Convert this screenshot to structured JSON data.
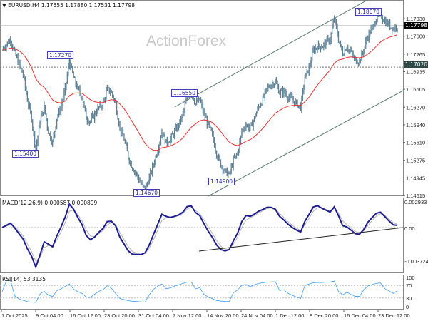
{
  "header": {
    "symbol": "EURUSD,H4",
    "ohlc": "1.17555 1.17880 1.17531 1.17798"
  },
  "watermark": "ActionForex",
  "colors": {
    "candle": "#5b7f95",
    "ma": "#f03030",
    "macd": "#1c1c90",
    "signal": "#b0b0b0",
    "rsi": "#3d9bf0",
    "current_tag": "#000000",
    "level_tag": "#2e4a48",
    "channel": "#5a7a70"
  },
  "chart_data": {
    "type": "ohlc-bar",
    "price_axis": {
      "ticks": [
        "1.17930",
        "1.17600",
        "1.17265",
        "1.16935",
        "1.16605",
        "1.16270",
        "1.15940",
        "1.15610",
        "1.15275",
        "1.14945",
        "1.14615"
      ],
      "range": [
        1.14615,
        1.1793
      ]
    },
    "current_price": "1.17798",
    "level_line": "1.17020",
    "annotations": [
      "1.17270",
      "1.15400",
      "1.14670",
      "1.16550",
      "1.14900",
      "1.18070"
    ],
    "x_ticks": [
      "1 Oct 2025",
      "9 Oct 04:00",
      "16 Oct 12:00",
      "23 Oct 20:00",
      "31 Oct 04:00",
      "7 Nov 12:00",
      "14 Nov 20:00",
      "24 Nov 04:00",
      "1 Dec 12:00",
      "8 Dec 20:00",
      "16 Dec 04:00",
      "23 Dec 12:00"
    ],
    "close": [
      1.1734,
      1.1745,
      1.1754,
      1.1728,
      1.1708,
      1.1687,
      1.1641,
      1.1607,
      1.1547,
      1.1601,
      1.1627,
      1.1581,
      1.1561,
      1.1607,
      1.1627,
      1.1661,
      1.1714,
      1.1681,
      1.1661,
      1.1647,
      1.1607,
      1.1601,
      1.1614,
      1.1627,
      1.1634,
      1.1661,
      1.1654,
      1.1634,
      1.1587,
      1.1567,
      1.1534,
      1.1514,
      1.1501,
      1.1483,
      1.1474,
      1.1494,
      1.152,
      1.1547,
      1.1581,
      1.1561,
      1.1567,
      1.1581,
      1.1594,
      1.1614,
      1.1647,
      1.1654,
      1.1634,
      1.1641,
      1.1614,
      1.1594,
      1.1574,
      1.1541,
      1.152,
      1.1507,
      1.15,
      1.1527,
      1.1541,
      1.1581,
      1.1594,
      1.1587,
      1.1607,
      1.1627,
      1.1641,
      1.1661,
      1.167,
      1.1674,
      1.1654,
      1.1657,
      1.1647,
      1.1641,
      1.1634,
      1.1627,
      1.1681,
      1.1701,
      1.1734,
      1.1741,
      1.1741,
      1.1748,
      1.1754,
      1.1794,
      1.1754,
      1.1728,
      1.1741,
      1.1728,
      1.1714,
      1.1714,
      1.1734,
      1.1761,
      1.1774,
      1.1794,
      1.1801,
      1.1788,
      1.1781,
      1.1774,
      1.178
    ],
    "macd": {
      "label": "MACD(12,26,9) 0.000587 0.000899",
      "axis_ticks": [
        "0.002933",
        "0.00",
        "-0.003724"
      ],
      "range": [
        -0.003724,
        0.002933
      ]
    },
    "rsi": {
      "label": "RSI(14) 53.3135",
      "axis_ticks": [
        "100",
        "70",
        "30",
        "0"
      ],
      "levels": [
        70,
        30
      ]
    }
  }
}
